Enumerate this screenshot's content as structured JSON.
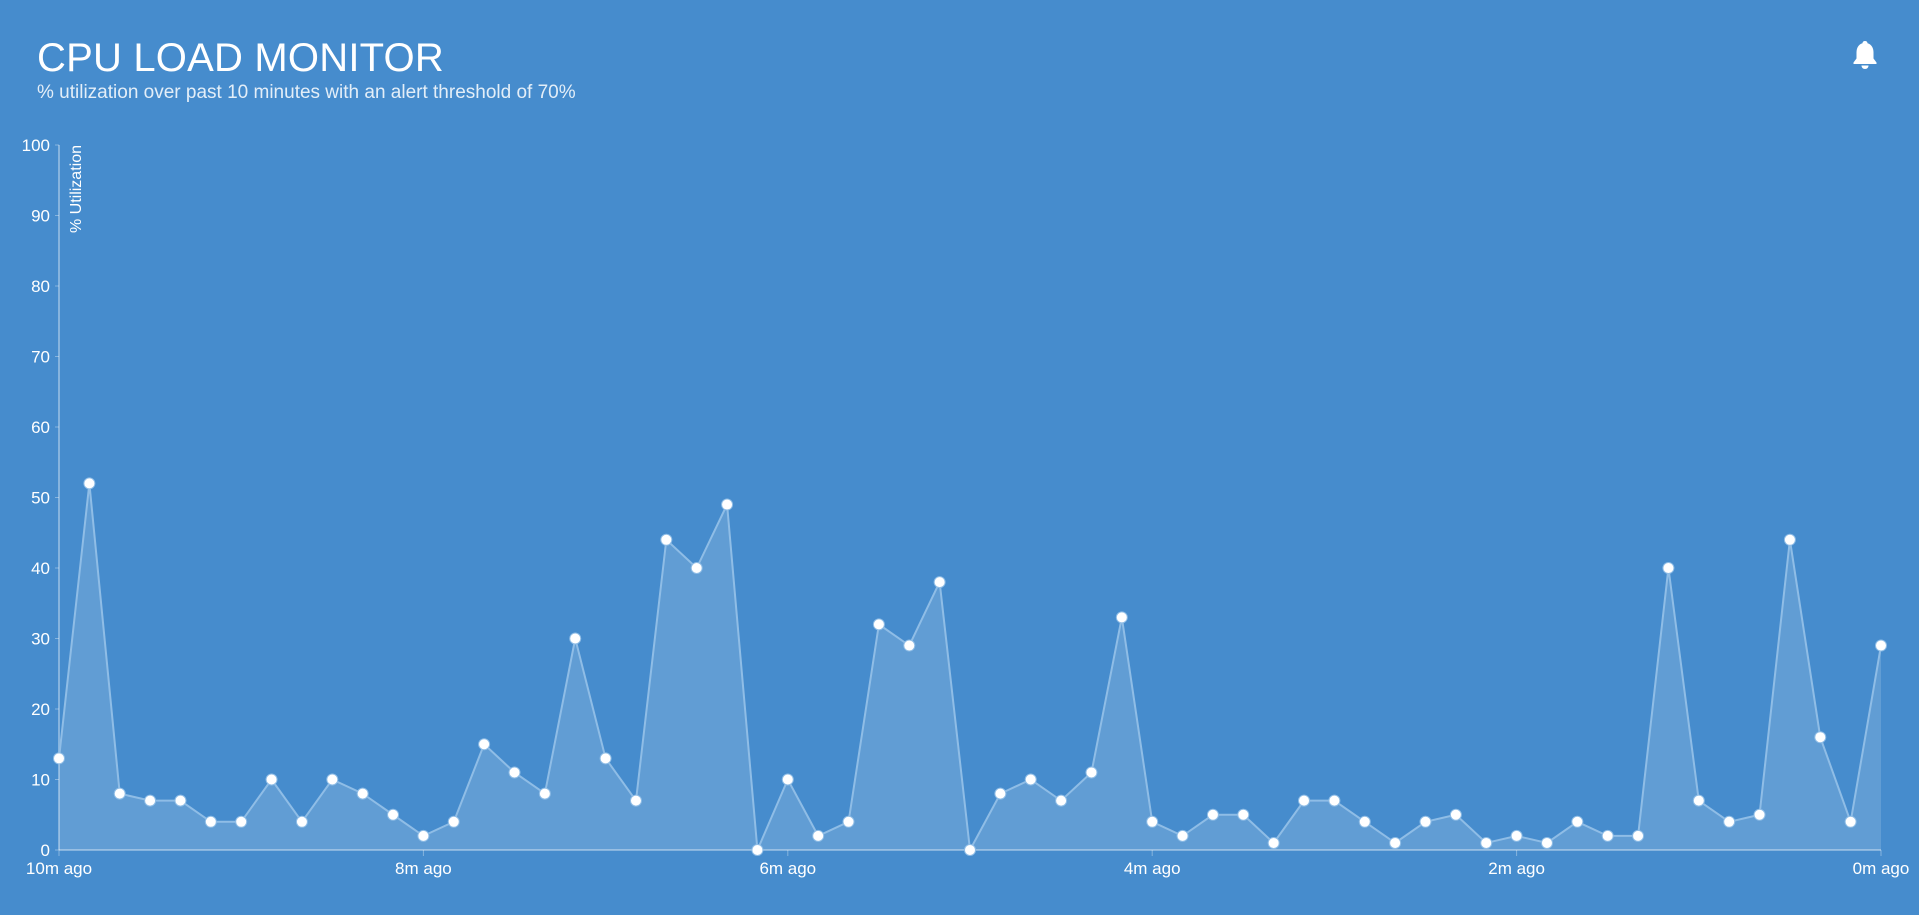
{
  "header": {
    "title": "CPU LOAD MONITOR",
    "subtitle": "% utilization over past 10 minutes with an alert threshold of 70%",
    "alert_icon": "bell-icon"
  },
  "colors": {
    "background": "#468ccd",
    "line": "#8fbde6",
    "area_fill": "rgba(255,255,255,0.15)",
    "point": "#ffffff"
  },
  "chart_data": {
    "type": "area",
    "title": "CPU LOAD MONITOR",
    "subtitle": "% utilization over past 10 minutes with an alert threshold of 70%",
    "ylabel": "% Utilization",
    "xlabel": "",
    "ylim": [
      0,
      100
    ],
    "yticks": [
      0,
      10,
      20,
      30,
      40,
      50,
      60,
      70,
      80,
      90,
      100
    ],
    "xlim_minutes_ago": [
      10,
      0
    ],
    "xticks": [
      {
        "minutes_ago": 10,
        "label": "10m ago"
      },
      {
        "minutes_ago": 8,
        "label": "8m ago"
      },
      {
        "minutes_ago": 6,
        "label": "6m ago"
      },
      {
        "minutes_ago": 4,
        "label": "4m ago"
      },
      {
        "minutes_ago": 2,
        "label": "2m ago"
      },
      {
        "minutes_ago": 0,
        "label": "0m ago"
      }
    ],
    "alert_threshold": 70,
    "grid": false,
    "series": [
      {
        "values": [
          13,
          52,
          8,
          7,
          7,
          4,
          4,
          10,
          4,
          10,
          8,
          5,
          2,
          4,
          15,
          11,
          8,
          30,
          13,
          7,
          44,
          40,
          49,
          0,
          10,
          2,
          4,
          32,
          29,
          38,
          0,
          8,
          10,
          7,
          11,
          33,
          4,
          2,
          5,
          5,
          1,
          7,
          7,
          4,
          1,
          4,
          5,
          1,
          2,
          1,
          4,
          2,
          2,
          40,
          7,
          4,
          5,
          44,
          16,
          4,
          29
        ]
      }
    ]
  }
}
